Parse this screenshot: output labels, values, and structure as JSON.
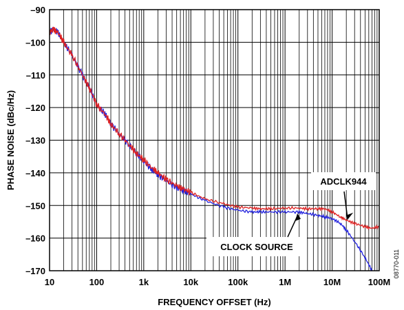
{
  "chart_data": {
    "type": "line",
    "title": "",
    "xlabel": "FREQUENCY OFFSET (Hz)",
    "ylabel": "PHASE NOISE (dBc/Hz)",
    "x_scale": "log",
    "xlim": [
      10,
      100000000
    ],
    "ylim": [
      -170,
      -90
    ],
    "x_ticks": [
      {
        "value": 10,
        "label": "10"
      },
      {
        "value": 100,
        "label": "100"
      },
      {
        "value": 1000,
        "label": "1k"
      },
      {
        "value": 10000,
        "label": "10k"
      },
      {
        "value": 100000,
        "label": "100k"
      },
      {
        "value": 1000000,
        "label": "1M"
      },
      {
        "value": 10000000,
        "label": "10M"
      },
      {
        "value": 100000000,
        "label": "100M"
      }
    ],
    "y_ticks": [
      {
        "value": -90,
        "label": "–90"
      },
      {
        "value": -100,
        "label": "–100"
      },
      {
        "value": -110,
        "label": "–110"
      },
      {
        "value": -120,
        "label": "–120"
      },
      {
        "value": -130,
        "label": "–130"
      },
      {
        "value": -140,
        "label": "–140"
      },
      {
        "value": -150,
        "label": "–150"
      },
      {
        "value": -160,
        "label": "–160"
      },
      {
        "value": -170,
        "label": "–170"
      }
    ],
    "grid": true,
    "series": [
      {
        "name": "CLOCK SOURCE",
        "color": "#2222dd",
        "x": [
          10,
          12,
          15,
          20,
          30,
          50,
          70,
          100,
          150,
          200,
          300,
          500,
          700,
          1000,
          1500,
          2000,
          3000,
          5000,
          7000,
          10000,
          20000,
          50000,
          100000,
          200000,
          300000,
          500000,
          1000000,
          2000000,
          3000000,
          5000000,
          7000000,
          10000000,
          15000000,
          20000000,
          30000000,
          50000000,
          70000000
        ],
        "y": [
          -97,
          -96,
          -97,
          -100,
          -104,
          -110,
          -114,
          -119,
          -122,
          -125,
          -128,
          -131.5,
          -134,
          -136.5,
          -139,
          -140.5,
          -142.5,
          -144.5,
          -145.5,
          -146.5,
          -148.5,
          -150.5,
          -151.5,
          -152,
          -152,
          -152,
          -152,
          -152,
          -152.5,
          -153,
          -153.5,
          -154,
          -155.5,
          -157.5,
          -161,
          -166,
          -170
        ]
      },
      {
        "name": "ADCLK944",
        "color": "#dd2222",
        "x": [
          10,
          12,
          15,
          20,
          30,
          50,
          70,
          100,
          150,
          200,
          300,
          500,
          700,
          1000,
          1500,
          2000,
          3000,
          5000,
          7000,
          10000,
          20000,
          50000,
          100000,
          200000,
          300000,
          500000,
          1000000,
          2000000,
          3000000,
          5000000,
          7000000,
          10000000,
          15000000,
          20000000,
          30000000,
          50000000,
          70000000,
          100000000
        ],
        "y": [
          -97,
          -96,
          -97,
          -100,
          -104,
          -110,
          -114,
          -119,
          -122,
          -125,
          -128,
          -131.5,
          -134,
          -136,
          -138.5,
          -140,
          -142,
          -144,
          -145,
          -146,
          -148,
          -149.5,
          -150.5,
          -150.8,
          -151,
          -151,
          -150.8,
          -150.8,
          -151,
          -151,
          -151,
          -152,
          -153.5,
          -154.5,
          -155.5,
          -156.5,
          -157,
          -156.5
        ]
      }
    ],
    "annotations": [
      {
        "text": "ADCLK944",
        "x": 28000000,
        "y": -154.3
      },
      {
        "text": "CLOCK SOURCE",
        "x": 450000,
        "y": -162.5
      }
    ],
    "figure_id": "08770-011"
  }
}
